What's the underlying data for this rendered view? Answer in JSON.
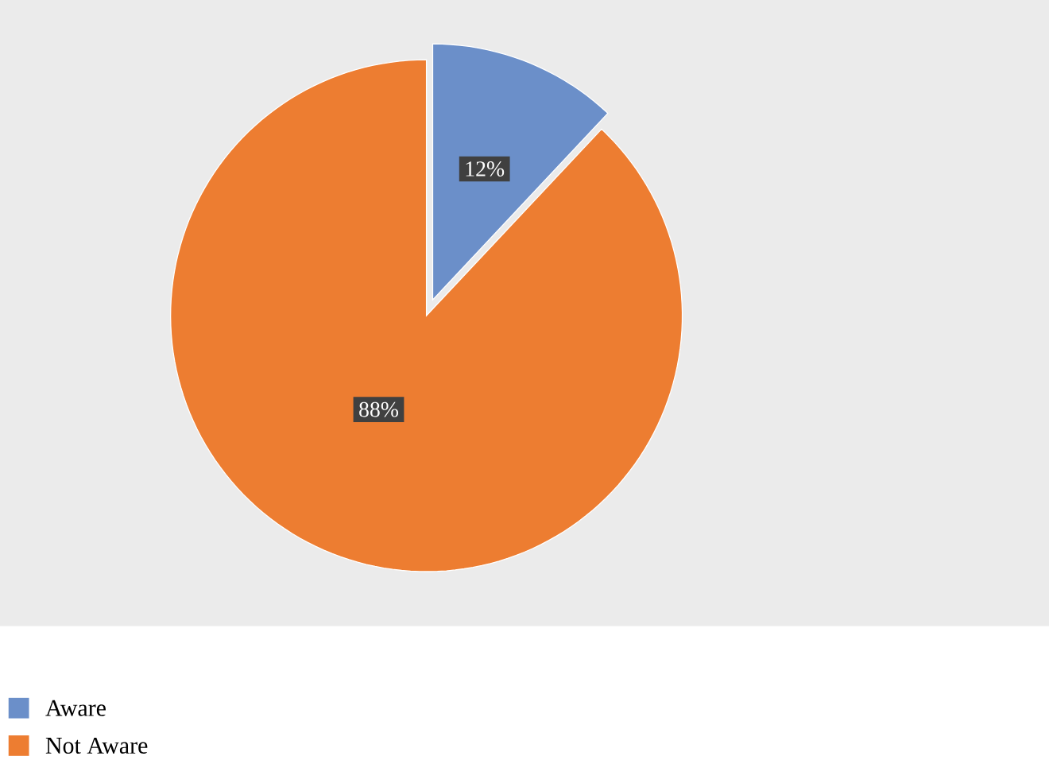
{
  "chart_data": {
    "type": "pie",
    "categories": [
      "Aware",
      "Not Aware"
    ],
    "values": [
      12,
      88
    ],
    "colors": [
      "#6b8fc9",
      "#ed7d31"
    ],
    "value_labels": [
      "12%",
      "88%"
    ],
    "legend": "bottom left"
  }
}
